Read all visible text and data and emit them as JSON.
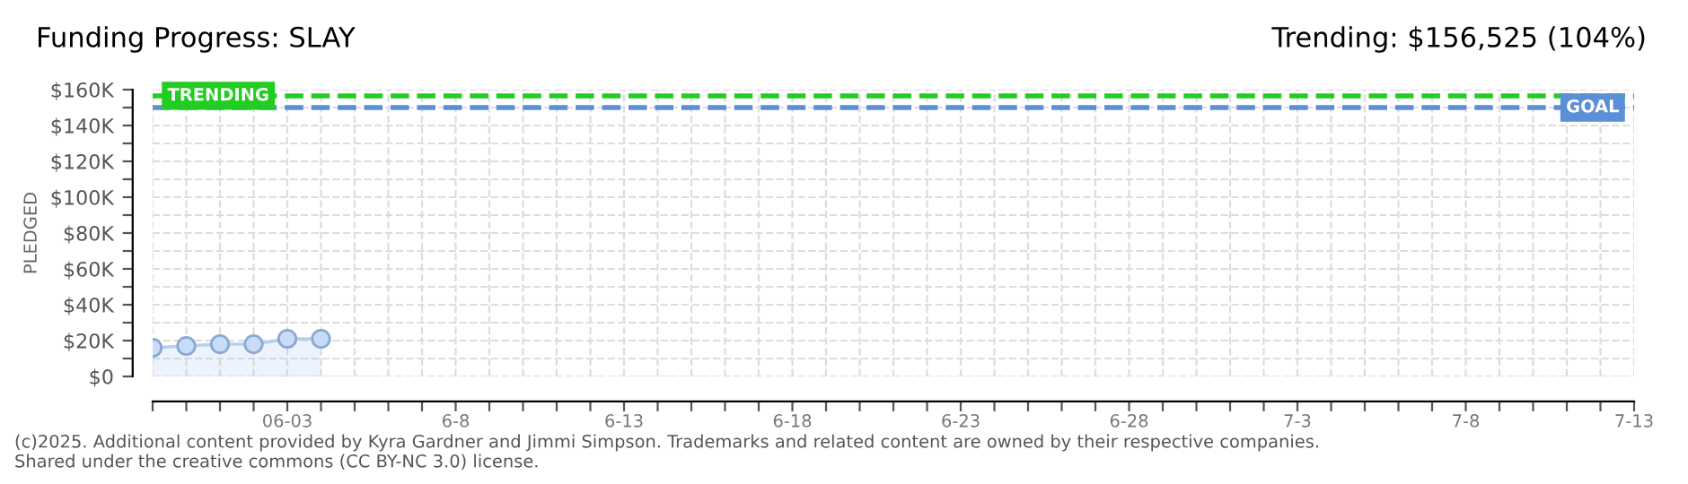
{
  "chart_data": {
    "type": "area",
    "title": "Funding Progress: SLAY",
    "subtitle": "Trending: $156,525 (104%)",
    "ylabel": "PLEDGED",
    "x": [
      "2025-05-30",
      "2025-05-31",
      "2025-06-01",
      "2025-06-02",
      "2025-06-03",
      "2025-06-04"
    ],
    "series": [
      {
        "color": "#b3cff2",
        "values": [
          16000,
          17000,
          18000,
          18000,
          21000,
          21000
        ]
      }
    ],
    "marker": "circle",
    "grid": true,
    "xlim": [
      "2025-05-30",
      "2025-07-13"
    ],
    "xticks": [
      {
        "value": "2025-05-30",
        "label": null
      },
      {
        "value": "2025-05-31",
        "label": null
      },
      {
        "value": "2025-06-01",
        "label": null
      },
      {
        "value": "2025-06-02",
        "label": null
      },
      {
        "value": "2025-06-03",
        "label": "06-03"
      },
      {
        "value": "2025-06-04",
        "label": null
      },
      {
        "value": "2025-06-05",
        "label": null
      },
      {
        "value": "2025-06-06",
        "label": null
      },
      {
        "value": "2025-06-07",
        "label": null
      },
      {
        "value": "2025-06-08",
        "label": "6-8"
      },
      {
        "value": "2025-06-09",
        "label": null
      },
      {
        "value": "2025-06-10",
        "label": null
      },
      {
        "value": "2025-06-11",
        "label": null
      },
      {
        "value": "2025-06-12",
        "label": null
      },
      {
        "value": "2025-06-13",
        "label": "6-13"
      },
      {
        "value": "2025-06-14",
        "label": null
      },
      {
        "value": "2025-06-15",
        "label": null
      },
      {
        "value": "2025-06-16",
        "label": null
      },
      {
        "value": "2025-06-17",
        "label": null
      },
      {
        "value": "2025-06-18",
        "label": "6-18"
      },
      {
        "value": "2025-06-19",
        "label": null
      },
      {
        "value": "2025-06-20",
        "label": null
      },
      {
        "value": "2025-06-21",
        "label": null
      },
      {
        "value": "2025-06-22",
        "label": null
      },
      {
        "value": "2025-06-23",
        "label": "6-23"
      },
      {
        "value": "2025-06-24",
        "label": null
      },
      {
        "value": "2025-06-25",
        "label": null
      },
      {
        "value": "2025-06-26",
        "label": null
      },
      {
        "value": "2025-06-27",
        "label": null
      },
      {
        "value": "2025-06-28",
        "label": "6-28"
      },
      {
        "value": "2025-06-29",
        "label": null
      },
      {
        "value": "2025-06-30",
        "label": null
      },
      {
        "value": "2025-07-01",
        "label": null
      },
      {
        "value": "2025-07-02",
        "label": null
      },
      {
        "value": "2025-07-03",
        "label": "7-3"
      },
      {
        "value": "2025-07-04",
        "label": null
      },
      {
        "value": "2025-07-05",
        "label": null
      },
      {
        "value": "2025-07-06",
        "label": null
      },
      {
        "value": "2025-07-07",
        "label": null
      },
      {
        "value": "2025-07-08",
        "label": "7-8"
      },
      {
        "value": "2025-07-09",
        "label": null
      },
      {
        "value": "2025-07-10",
        "label": null
      },
      {
        "value": "2025-07-11",
        "label": null
      },
      {
        "value": "2025-07-12",
        "label": null
      },
      {
        "value": "2025-07-13",
        "label": "7-13"
      }
    ],
    "ylim": [
      0,
      160000
    ],
    "yticks": [
      {
        "value": 0,
        "label": "$0"
      },
      {
        "value": 10000,
        "label": null
      },
      {
        "value": 20000,
        "label": "$20K"
      },
      {
        "value": 30000,
        "label": null
      },
      {
        "value": 40000,
        "label": "$40K"
      },
      {
        "value": 50000,
        "label": null
      },
      {
        "value": 60000,
        "label": "$60K"
      },
      {
        "value": 70000,
        "label": null
      },
      {
        "value": 80000,
        "label": "$80K"
      },
      {
        "value": 90000,
        "label": null
      },
      {
        "value": 100000,
        "label": "$100K"
      },
      {
        "value": 110000,
        "label": null
      },
      {
        "value": 120000,
        "label": "$120K"
      },
      {
        "value": 130000,
        "label": null
      },
      {
        "value": 140000,
        "label": "$140K"
      },
      {
        "value": 150000,
        "label": null
      },
      {
        "value": 160000,
        "label": "$160K"
      }
    ],
    "ref_lines": [
      {
        "axis": "y",
        "value": 156525,
        "label": "TRENDING",
        "color": "#22cc22",
        "line_style": "dashed"
      },
      {
        "axis": "y",
        "value": 150000,
        "label": "GOAL",
        "color": "#5b8fd6",
        "line_style": "dashed"
      }
    ],
    "annotations": [
      "(c)2025. Additional content provided by Kyra Gardner and Jimmi Simpson. Trademarks and related content are owned by their respective companies.",
      "Shared under the creative commons (CC BY-NC 3.0) license."
    ]
  }
}
